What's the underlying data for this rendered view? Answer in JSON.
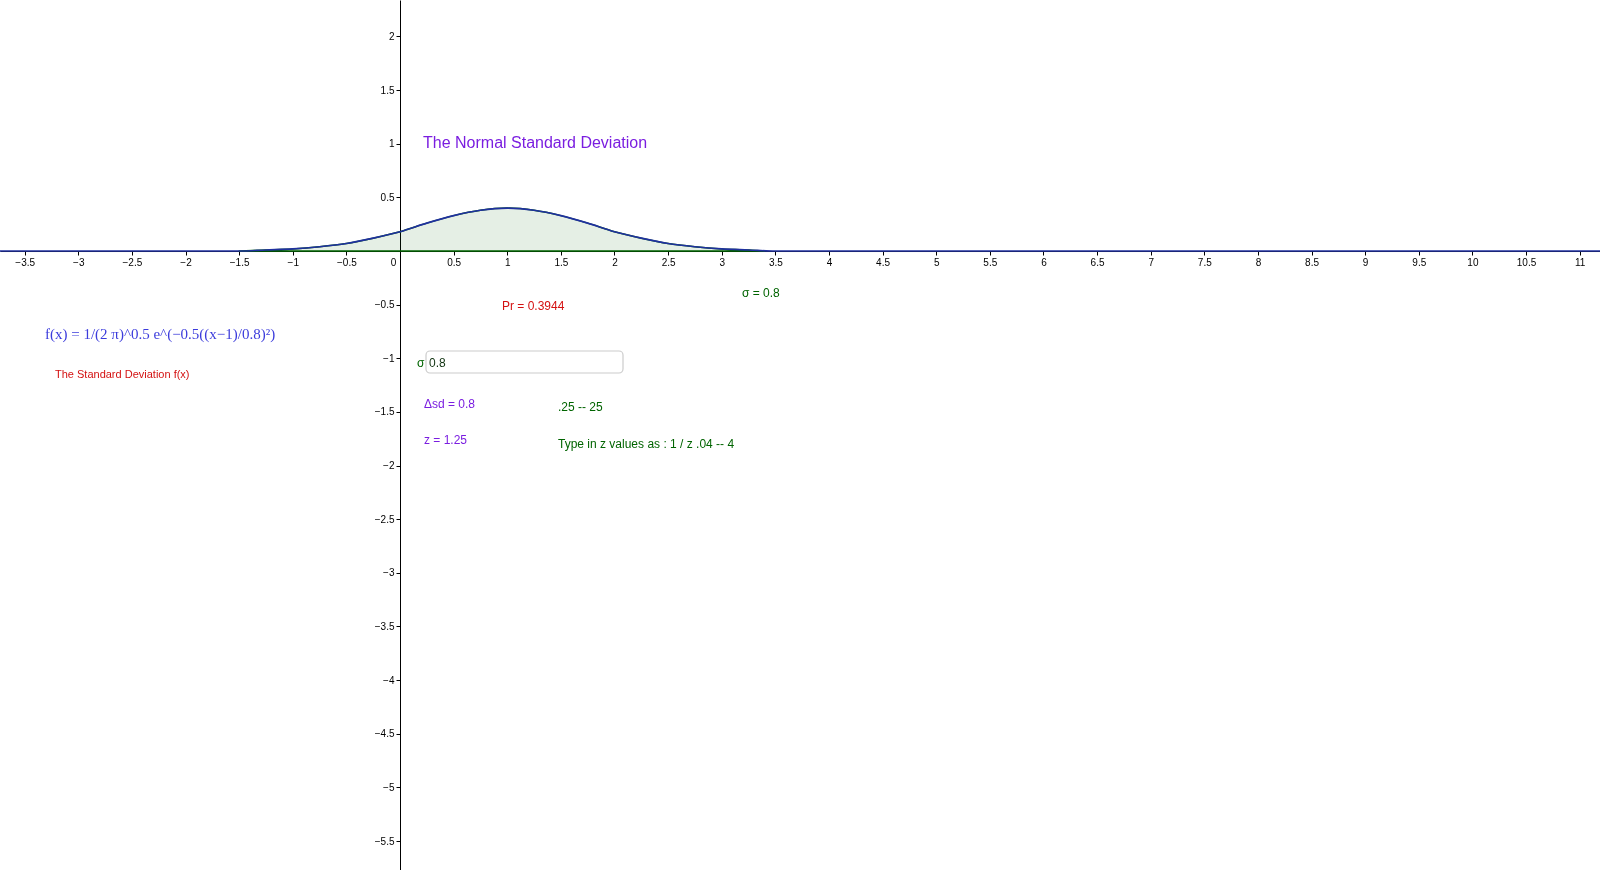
{
  "chart_data": {
    "type": "line",
    "title": "The Normal Standard Deviation",
    "xlim": [
      -3.73,
      11.19
    ],
    "ylim": [
      -5.77,
      2.34
    ],
    "xticks": [
      -3.5,
      -3,
      -2.5,
      -2,
      -1.5,
      -1,
      -0.5,
      0,
      0.5,
      1,
      1.5,
      2,
      2.5,
      3,
      3.5,
      4,
      4.5,
      5,
      5.5,
      6,
      6.5,
      7,
      7.5,
      8,
      8.5,
      9,
      9.5,
      10,
      10.5,
      11
    ],
    "yticks": [
      2,
      1.5,
      1,
      0.5,
      -0.5,
      -1,
      -1.5,
      -2,
      -2.5,
      -3,
      -3.5,
      -4,
      -4.5,
      -5,
      -5.5
    ],
    "series": [
      {
        "type": "area",
        "color": "#006400",
        "x": [
          -1.5,
          -1.25,
          -1,
          -0.75,
          -0.5,
          -0.25,
          0,
          0.25,
          0.5,
          0.75,
          1,
          1.25,
          1.5,
          1.75,
          2,
          2.25,
          2.5,
          2.75,
          3,
          3.25,
          3.4
        ],
        "values": [
          0,
          0.01,
          0.02,
          0.04,
          0.07,
          0.12,
          0.18,
          0.26,
          0.33,
          0.38,
          0.4,
          0.38,
          0.33,
          0.26,
          0.18,
          0.12,
          0.07,
          0.04,
          0.02,
          0.01,
          0
        ]
      },
      {
        "color": "#2030a0",
        "x": [
          -3.73,
          -2,
          -1.5,
          -1.25,
          -1,
          -0.75,
          -0.5,
          -0.25,
          0,
          0.25,
          0.5,
          0.75,
          1,
          1.25,
          1.5,
          1.75,
          2,
          2.25,
          2.5,
          2.75,
          3,
          3.25,
          3.5,
          4,
          5,
          11.19
        ],
        "values": [
          0,
          0,
          0,
          0.01,
          0.02,
          0.04,
          0.07,
          0.12,
          0.18,
          0.26,
          0.33,
          0.38,
          0.4,
          0.38,
          0.33,
          0.26,
          0.18,
          0.12,
          0.07,
          0.04,
          0.02,
          0.01,
          0,
          0,
          0,
          0
        ]
      }
    ],
    "annotations": [
      "σ = 0.8",
      "Pr = 0.3944",
      "f(x) = 1/(2 π)^0.5 e^(−0.5((x−1)/0.8)²)",
      "σ",
      "0.8",
      "The Standard Deviation f(x)",
      "Δsd = 0.8",
      ".25  --  25",
      "z  = 1.25",
      "Type in z values as : 1 / z    .04  --  4"
    ]
  }
}
